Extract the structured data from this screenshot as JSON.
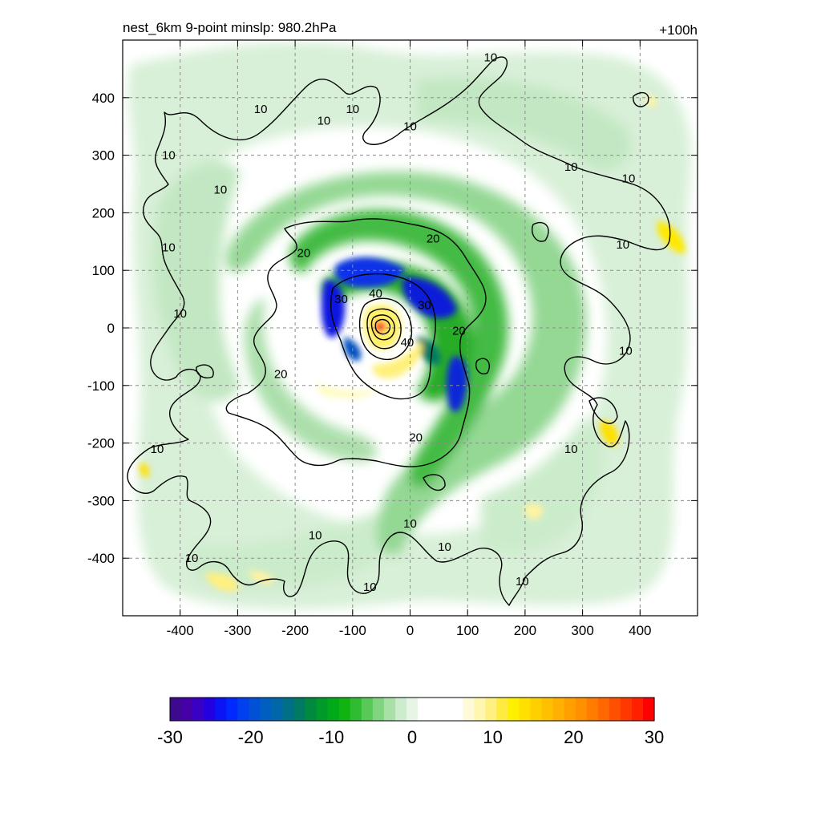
{
  "chart_data": {
    "type": "heatmap",
    "title": "nest_6km  9-point minslp: 980.2hPa",
    "subtitle": "+100h",
    "xlabel": "",
    "ylabel": "",
    "xlim": [
      -500,
      500
    ],
    "ylim": [
      -500,
      500
    ],
    "x_ticks": [
      -400,
      -300,
      -200,
      -100,
      0,
      100,
      200,
      300,
      400
    ],
    "y_ticks": [
      400,
      300,
      200,
      100,
      0,
      -100,
      -200,
      -300,
      -400
    ],
    "grid": true,
    "colorbar": {
      "min": -30,
      "max": 30,
      "ticks": [
        -30,
        -20,
        -10,
        0,
        10,
        20,
        30
      ],
      "placement": "bottom",
      "colors": [
        "#3d0a8f",
        "#4500a8",
        "#3a00c4",
        "#2400e0",
        "#0a14f5",
        "#0028ff",
        "#0040ee",
        "#0050d8",
        "#005ec0",
        "#0068a8",
        "#007088",
        "#007a60",
        "#008a40",
        "#009a28",
        "#00aa18",
        "#10b410",
        "#30bc30",
        "#58c858",
        "#80d480",
        "#a8e0a8",
        "#cdeccd",
        "#e6f5e6",
        "#ffffff",
        "#ffffff",
        "#ffffff",
        "#ffffff",
        "#fffbd8",
        "#fff7b0",
        "#fff080",
        "#ffeb40",
        "#fff000",
        "#ffe000",
        "#ffd000",
        "#ffc000",
        "#ffb000",
        "#ffa000",
        "#ff9000",
        "#ff7c00",
        "#ff6800",
        "#ff5000",
        "#ff3800",
        "#ff2000",
        "#ff0000"
      ]
    },
    "shading_cells": [
      {
        "x": -50,
        "y": 0,
        "value": 28
      },
      {
        "x": -40,
        "y": -70,
        "value": 12
      },
      {
        "x": -20,
        "y": 40,
        "value": -25
      },
      {
        "x": 40,
        "y": 40,
        "value": -20
      },
      {
        "x": 80,
        "y": -70,
        "value": -18
      },
      {
        "x": -130,
        "y": 30,
        "value": -22
      },
      {
        "x": 350,
        "y": -180,
        "value": 10
      },
      {
        "x": 460,
        "y": 150,
        "value": 8
      },
      {
        "x": -450,
        "y": -240,
        "value": 8
      },
      {
        "x": -320,
        "y": -440,
        "value": 7
      }
    ],
    "contours": {
      "levels": [
        10,
        20,
        30,
        40
      ],
      "labels": [
        {
          "text": "10",
          "x": 140,
          "y": 470
        },
        {
          "text": "10",
          "x": -260,
          "y": 380
        },
        {
          "text": "10",
          "x": -150,
          "y": 360
        },
        {
          "text": "10",
          "x": -100,
          "y": 380
        },
        {
          "text": "10",
          "x": 0,
          "y": 350
        },
        {
          "text": "10",
          "x": -420,
          "y": 300
        },
        {
          "text": "10",
          "x": -330,
          "y": 240
        },
        {
          "text": "10",
          "x": 280,
          "y": 280
        },
        {
          "text": "10",
          "x": 380,
          "y": 260
        },
        {
          "text": "10",
          "x": -420,
          "y": 140
        },
        {
          "text": "10",
          "x": 370,
          "y": 145
        },
        {
          "text": "10",
          "x": -400,
          "y": 25
        },
        {
          "text": "10",
          "x": 375,
          "y": -40
        },
        {
          "text": "10",
          "x": -440,
          "y": -210
        },
        {
          "text": "10",
          "x": 280,
          "y": -210
        },
        {
          "text": "10",
          "x": 0,
          "y": -340
        },
        {
          "text": "10",
          "x": 60,
          "y": -380
        },
        {
          "text": "10",
          "x": -165,
          "y": -360
        },
        {
          "text": "10",
          "x": -380,
          "y": -400
        },
        {
          "text": "10",
          "x": -70,
          "y": -450
        },
        {
          "text": "10",
          "x": 195,
          "y": -440
        },
        {
          "text": "20",
          "x": 40,
          "y": 155
        },
        {
          "text": "20",
          "x": -185,
          "y": 130
        },
        {
          "text": "20",
          "x": 85,
          "y": -5
        },
        {
          "text": "20",
          "x": -225,
          "y": -80
        },
        {
          "text": "20",
          "x": 10,
          "y": -190
        },
        {
          "text": "30",
          "x": -120,
          "y": 50
        },
        {
          "text": "30",
          "x": 25,
          "y": 40
        },
        {
          "text": "40",
          "x": -60,
          "y": 60
        },
        {
          "text": "40",
          "x": -5,
          "y": -25
        }
      ]
    }
  }
}
